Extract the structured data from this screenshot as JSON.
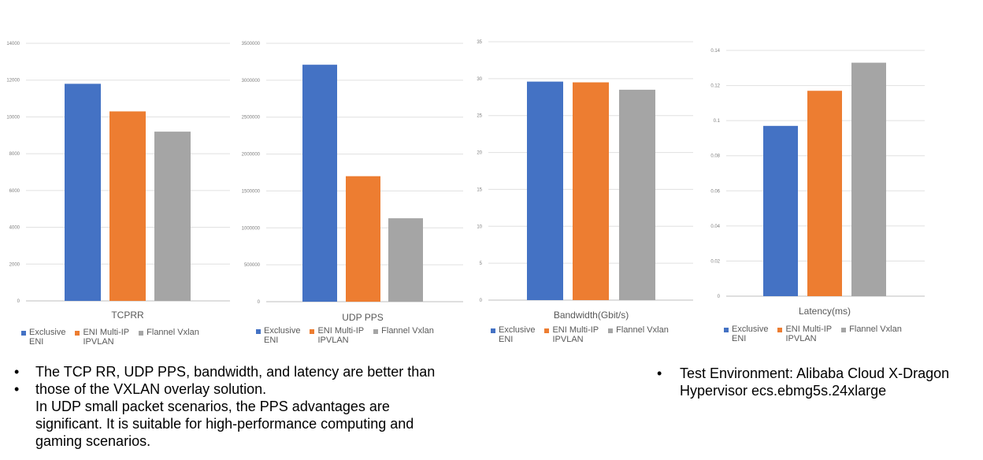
{
  "colors": {
    "series1": "#4472C4",
    "series2": "#ED7D31",
    "series3": "#A5A5A5"
  },
  "chart_data": [
    {
      "type": "bar",
      "title": "TCPRR",
      "categories": [
        "Exclusive ENI",
        "ENI Multi-IP IPVLAN",
        "Flannel Vxlan"
      ],
      "values": [
        11800,
        10300,
        9200
      ],
      "ylim": [
        0,
        14000
      ],
      "yticks": [
        "0",
        "2000",
        "4000",
        "6000",
        "8000",
        "10000",
        "12000",
        "14000"
      ],
      "grid": true,
      "legend_position": "bottom"
    },
    {
      "type": "bar",
      "title": "UDP PPS",
      "categories": [
        "Exclusive ENI",
        "ENI Multi-IP IPVLAN",
        "Flannel Vxlan"
      ],
      "values": [
        3210000,
        1700000,
        1130000
      ],
      "ylim": [
        0,
        3500000
      ],
      "yticks": [
        "0",
        "500000",
        "1000000",
        "1500000",
        "2000000",
        "2500000",
        "3000000",
        "3500000"
      ],
      "grid": true,
      "legend_position": "bottom"
    },
    {
      "type": "bar",
      "title": "Bandwidth(Gbit/s)",
      "categories": [
        "Exclusive ENI",
        "ENI Multi-IP IPVLAN",
        "Flannel Vxlan"
      ],
      "values": [
        29.6,
        29.5,
        28.5
      ],
      "ylim": [
        0,
        35
      ],
      "yticks": [
        "0",
        "5",
        "10",
        "15",
        "20",
        "25",
        "30",
        "35"
      ],
      "grid": true,
      "legend_position": "bottom"
    },
    {
      "type": "bar",
      "title": "Latency(ms)",
      "categories": [
        "Exclusive ENI",
        "ENI Multi-IP IPVLAN",
        "Flannel Vxlan"
      ],
      "values": [
        0.097,
        0.117,
        0.133
      ],
      "ylim": [
        0,
        0.14
      ],
      "yticks": [
        "0",
        "0.02",
        "0.04",
        "0.06",
        "0.08",
        "0.1",
        "0.12",
        "0.14"
      ],
      "grid": true,
      "legend_position": "bottom"
    }
  ],
  "legend": {
    "items": [
      {
        "line1": "Exclusive",
        "line2": "ENI"
      },
      {
        "line1": "ENI Multi-IP",
        "line2": "IPVLAN"
      },
      {
        "line1": "Flannel Vxlan",
        "line2": ""
      }
    ]
  },
  "notes": {
    "left_bullets": [
      "The TCP RR, UDP PPS, bandwidth, and latency are better than",
      "those of the VXLAN overlay solution."
    ],
    "left_continuation": [
      "In UDP small packet scenarios, the PPS advantages are",
      "significant. It is suitable for high-performance computing and",
      "gaming scenarios."
    ],
    "right_bullet_lines": [
      "Test Environment: Alibaba Cloud X-Dragon",
      "Hypervisor ecs.ebmg5s.24xlarge"
    ],
    "bullet_char": "•"
  }
}
